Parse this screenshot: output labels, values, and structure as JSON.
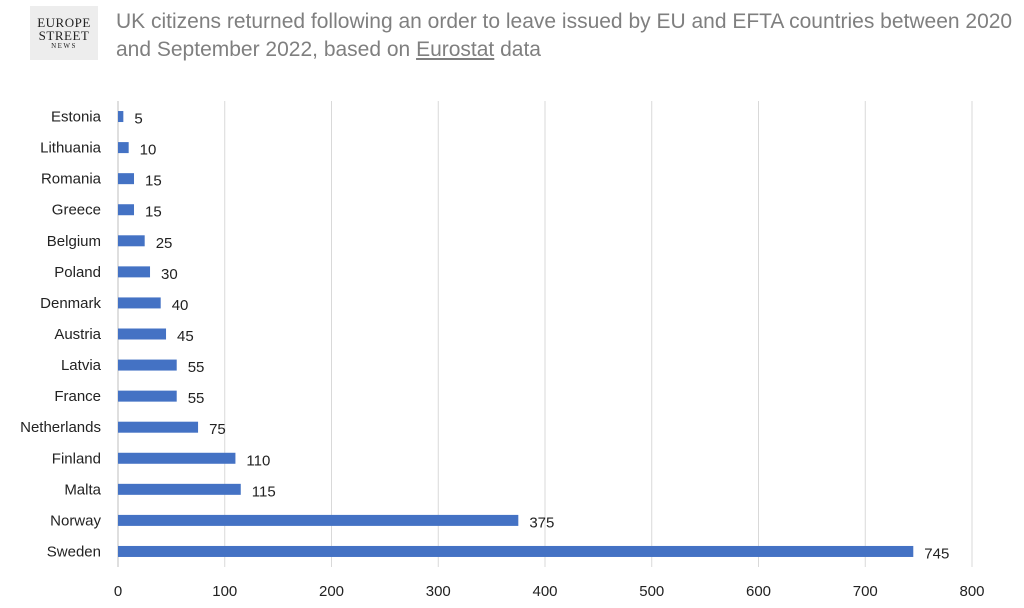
{
  "logo": {
    "line1": "EUROPE",
    "line2": "STREET",
    "line3": "NEWS"
  },
  "header": {
    "title_part1": "UK citizens returned following an order to leave issued by EU and EFTA countries between 2020 and September 2022, based on ",
    "title_link": "Eurostat",
    "title_part2": " data"
  },
  "chart_data": {
    "type": "bar",
    "orientation": "horizontal",
    "title": "UK citizens returned following an order to leave issued by EU and EFTA countries between 2020 and September 2022, based on Eurostat data",
    "categories": [
      "Estonia",
      "Lithuania",
      "Romania",
      "Greece",
      "Belgium",
      "Poland",
      "Denmark",
      "Austria",
      "Latvia",
      "France",
      "Netherlands",
      "Finland",
      "Malta",
      "Norway",
      "Sweden"
    ],
    "values": [
      5,
      10,
      15,
      15,
      25,
      30,
      40,
      45,
      55,
      55,
      75,
      110,
      115,
      375,
      745
    ],
    "xlim": [
      0,
      800
    ],
    "xticks": [
      0,
      100,
      200,
      300,
      400,
      500,
      600,
      700,
      800
    ],
    "grid": true,
    "data_labels": true,
    "bar_color": "#4472c4"
  }
}
